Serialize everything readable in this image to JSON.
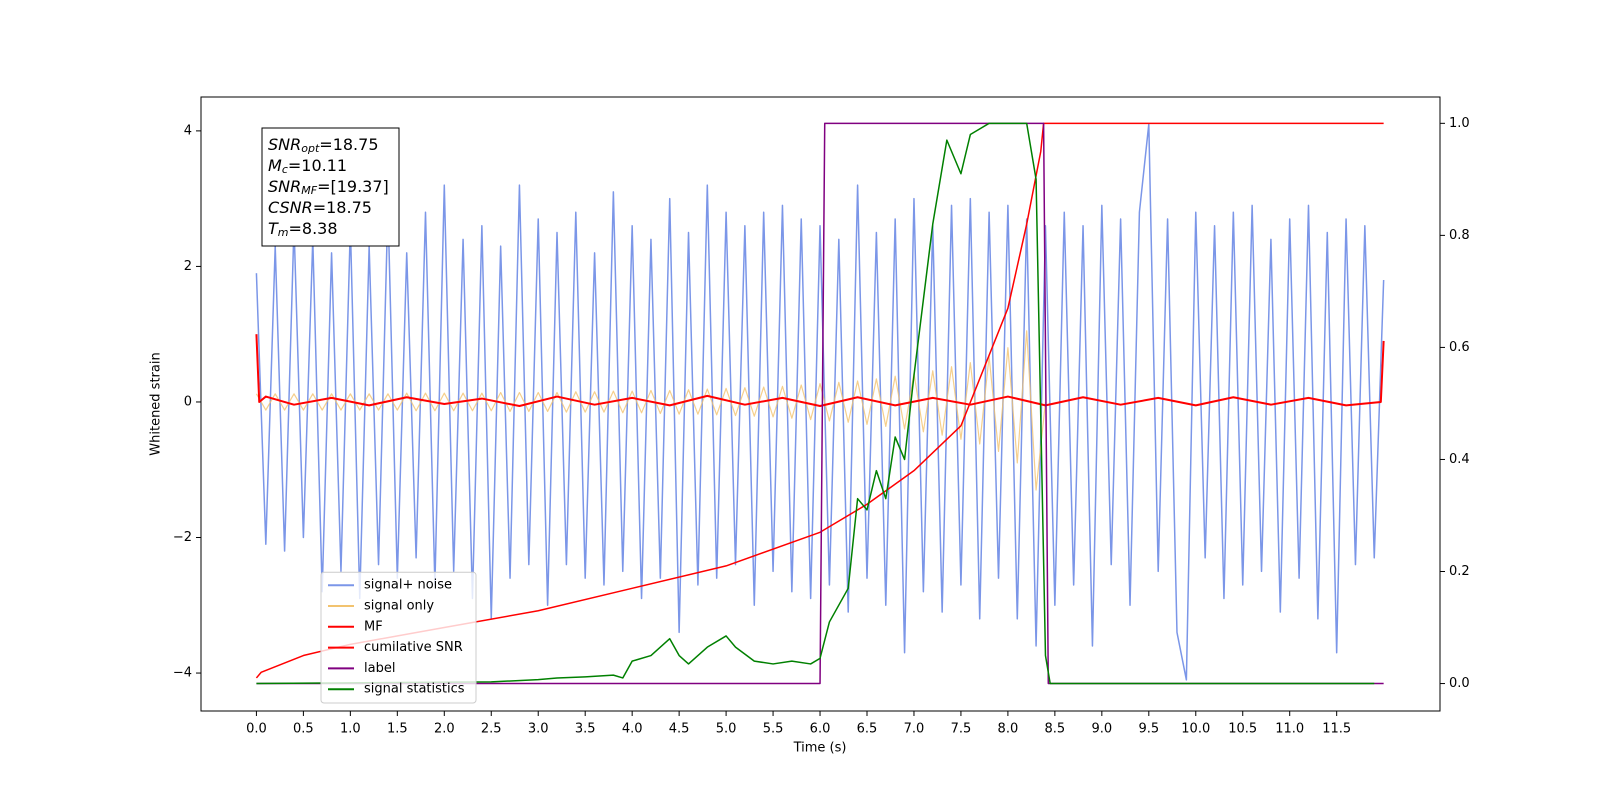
{
  "chart_data": {
    "type": "line",
    "xlabel": "Time (s)",
    "ylabel": "Whitened strain",
    "xlim": [
      -0.59,
      12.6
    ],
    "ylim": [
      -4.56,
      4.5
    ],
    "y2lim": [
      -0.049,
      1.047
    ],
    "xticks": [
      {
        "value": 0,
        "label": "0.0"
      },
      0.5,
      {
        "value": 1,
        "label": "1.0"
      },
      1.5,
      {
        "value": 2,
        "label": "2.0"
      },
      2.5,
      {
        "value": 3,
        "label": "3.0"
      },
      3.5,
      {
        "value": 4,
        "label": "4.0"
      },
      4.5,
      {
        "value": 5,
        "label": "5.0"
      },
      5.5,
      {
        "value": 6,
        "label": "6.0"
      },
      6.5,
      {
        "value": 7,
        "label": "7.0"
      },
      7.5,
      {
        "value": 8,
        "label": "8.0"
      },
      8.5,
      {
        "value": 9,
        "label": "9.0"
      },
      9.5,
      {
        "value": 10,
        "label": "10.0"
      },
      10.5,
      {
        "value": 11,
        "label": "11.0"
      },
      11.5
    ],
    "yticks": [
      {
        "value": -4,
        "label": "−4"
      },
      {
        "value": -2,
        "label": "−2"
      },
      0,
      2,
      4
    ],
    "y2ticks": [
      {
        "value": 0,
        "label": "0.0"
      },
      0.2,
      0.4,
      0.6,
      0.8,
      {
        "value": 1,
        "label": "1.0"
      }
    ],
    "legend": "lower left",
    "annotation": [
      {
        "main": "SNR",
        "sub": "opt",
        "rest": "=18.75"
      },
      {
        "main": "M",
        "sub": "c",
        "rest": "=10.11"
      },
      {
        "main": "SNR",
        "sub": "MF",
        "rest": "=[19.37]"
      },
      {
        "main": "CSNR",
        "rest": "=18.75"
      },
      {
        "main": "T",
        "sub": "m",
        "rest": "=8.38"
      }
    ],
    "series": [
      {
        "name": "signal+ noise",
        "color": "#7b96e8",
        "x": [
          0,
          0.1,
          0.2,
          0.3,
          0.4,
          0.5,
          0.6,
          0.7,
          0.8,
          0.9,
          1,
          1.1,
          1.2,
          1.3,
          1.4,
          1.5,
          1.6,
          1.7,
          1.8,
          1.9,
          2,
          2.1,
          2.2,
          2.3,
          2.4,
          2.5,
          2.6,
          2.7,
          2.8,
          2.9,
          3,
          3.1,
          3.2,
          3.3,
          3.4,
          3.5,
          3.6,
          3.7,
          3.8,
          3.9,
          4,
          4.1,
          4.2,
          4.3,
          4.4,
          4.5,
          4.6,
          4.7,
          4.8,
          4.9,
          5,
          5.1,
          5.2,
          5.3,
          5.4,
          5.5,
          5.6,
          5.7,
          5.8,
          5.9,
          6,
          6.1,
          6.2,
          6.3,
          6.4,
          6.5,
          6.6,
          6.7,
          6.8,
          6.9,
          7,
          7.1,
          7.2,
          7.3,
          7.4,
          7.5,
          7.6,
          7.7,
          7.8,
          7.9,
          8,
          8.1,
          8.2,
          8.3,
          8.4,
          8.5,
          8.6,
          8.7,
          8.8,
          8.9,
          9,
          9.1,
          9.2,
          9.3,
          9.4,
          9.5,
          9.6,
          9.7,
          9.8,
          9.9,
          10,
          10.1,
          10.2,
          10.3,
          10.4,
          10.5,
          10.6,
          10.7,
          10.8,
          10.9,
          11,
          11.1,
          11.2,
          11.3,
          11.4,
          11.5,
          11.6,
          11.7,
          11.8,
          11.9,
          12
        ],
        "values": [
          1.9,
          -2.1,
          2.3,
          -2.2,
          2.6,
          -2.0,
          2.4,
          -2.8,
          2.2,
          -2.5,
          2.6,
          -2.9,
          2.3,
          -2.4,
          2.9,
          -2.6,
          2.2,
          -2.3,
          2.8,
          -2.7,
          3.2,
          -2.5,
          2.4,
          -2.9,
          2.6,
          -3.2,
          2.3,
          -2.6,
          3.2,
          -2.4,
          2.7,
          -3.0,
          2.5,
          -2.4,
          2.8,
          -2.6,
          2.2,
          -2.7,
          3.1,
          -2.5,
          2.6,
          -2.9,
          2.4,
          -2.6,
          3.0,
          -3.4,
          2.5,
          -2.7,
          3.2,
          -2.6,
          2.8,
          -2.4,
          2.6,
          -3.0,
          2.8,
          -2.5,
          2.9,
          -2.8,
          2.7,
          -2.9,
          2.6,
          -2.7,
          2.4,
          -3.1,
          3.2,
          -2.6,
          2.5,
          -3.0,
          2.7,
          -3.7,
          3.0,
          -2.8,
          2.6,
          -3.1,
          2.9,
          -2.7,
          3.0,
          -3.2,
          2.8,
          -2.6,
          2.9,
          -3.2,
          2.7,
          -3.6,
          2.6,
          -3.0,
          2.8,
          -2.7,
          2.6,
          -3.6,
          2.9,
          -2.4,
          2.7,
          -3.0,
          2.8,
          4.1,
          -2.5,
          2.7,
          -3.4,
          -4.1,
          2.8,
          -2.3,
          2.6,
          -2.9,
          2.8,
          -2.7,
          2.9,
          -2.5,
          2.4,
          -3.1,
          2.7,
          -2.6,
          2.9,
          -3.2,
          2.5,
          -3.7,
          2.7,
          -2.4,
          2.6,
          -2.3,
          1.8
        ]
      },
      {
        "name": "signal only",
        "color": "#f2c36f",
        "x": [
          0,
          0.1,
          0.2,
          0.3,
          0.4,
          0.5,
          0.6,
          0.7,
          0.8,
          0.9,
          1,
          1.1,
          1.2,
          1.3,
          1.4,
          1.5,
          1.6,
          1.7,
          1.8,
          1.9,
          2,
          2.1,
          2.2,
          2.3,
          2.4,
          2.5,
          2.6,
          2.7,
          2.8,
          2.9,
          3,
          3.1,
          3.2,
          3.3,
          3.4,
          3.5,
          3.6,
          3.7,
          3.8,
          3.9,
          4,
          4.1,
          4.2,
          4.3,
          4.4,
          4.5,
          4.6,
          4.7,
          4.8,
          4.9,
          5,
          5.1,
          5.2,
          5.3,
          5.4,
          5.5,
          5.6,
          5.7,
          5.8,
          5.9,
          6,
          6.1,
          6.2,
          6.3,
          6.4,
          6.5,
          6.6,
          6.7,
          6.8,
          6.9,
          7,
          7.1,
          7.2,
          7.3,
          7.4,
          7.5,
          7.6,
          7.7,
          7.8,
          7.9,
          8,
          8.1,
          8.2,
          8.3,
          8.4
        ],
        "values": [
          0.12,
          -0.12,
          0.12,
          -0.12,
          0.12,
          -0.12,
          0.12,
          -0.12,
          0.12,
          -0.12,
          0.12,
          -0.12,
          0.12,
          -0.12,
          0.12,
          -0.12,
          0.13,
          -0.13,
          0.13,
          -0.13,
          0.13,
          -0.13,
          0.13,
          -0.13,
          0.13,
          -0.13,
          0.14,
          -0.14,
          0.14,
          -0.14,
          0.14,
          -0.14,
          0.14,
          -0.15,
          0.15,
          -0.15,
          0.15,
          -0.15,
          0.16,
          -0.16,
          0.16,
          -0.16,
          0.17,
          -0.17,
          0.17,
          -0.18,
          0.18,
          -0.18,
          0.19,
          -0.19,
          0.2,
          -0.2,
          0.21,
          -0.21,
          0.22,
          -0.22,
          0.23,
          -0.24,
          0.25,
          -0.26,
          0.27,
          -0.28,
          0.29,
          -0.3,
          0.31,
          -0.33,
          0.34,
          -0.36,
          0.38,
          -0.4,
          0.42,
          -0.44,
          0.46,
          -0.49,
          0.52,
          -0.55,
          0.58,
          -0.62,
          0.67,
          -0.73,
          0.8,
          -0.9,
          1.05,
          -1.3,
          0
        ]
      },
      {
        "name": "MF",
        "color": "#ff0000",
        "x": [
          0,
          0.03,
          0.1,
          0.4,
          0.8,
          1.2,
          1.6,
          2.0,
          2.4,
          2.8,
          3.2,
          3.6,
          4.0,
          4.4,
          4.8,
          5.2,
          5.6,
          6.0,
          6.4,
          6.8,
          7.2,
          7.6,
          8.0,
          8.4,
          8.8,
          9.2,
          9.6,
          10.0,
          10.4,
          10.8,
          11.2,
          11.6,
          11.97,
          12.0
        ],
        "values": [
          1.0,
          0.0,
          0.08,
          -0.04,
          0.06,
          -0.05,
          0.07,
          -0.03,
          0.05,
          -0.06,
          0.08,
          -0.04,
          0.06,
          -0.05,
          0.09,
          -0.04,
          0.06,
          -0.06,
          0.07,
          -0.05,
          0.06,
          -0.04,
          0.08,
          -0.05,
          0.07,
          -0.04,
          0.06,
          -0.05,
          0.07,
          -0.04,
          0.06,
          -0.05,
          0.0,
          0.9
        ]
      },
      {
        "name": "cumilative SNR",
        "color": "#ff0000",
        "axis": "y2",
        "x": [
          0,
          0.05,
          0.5,
          1,
          2,
          3,
          4,
          5,
          6,
          6.5,
          7,
          7.5,
          8,
          8.2,
          8.35,
          8.38,
          9,
          10,
          11,
          12
        ],
        "values": [
          0.01,
          0.02,
          0.05,
          0.07,
          0.1,
          0.13,
          0.17,
          0.21,
          0.27,
          0.32,
          0.38,
          0.46,
          0.67,
          0.82,
          0.95,
          1.0,
          1.0,
          1.0,
          1.0,
          1.0
        ]
      },
      {
        "name": "label",
        "color": "#800080",
        "axis": "y2",
        "x": [
          0,
          6.0,
          6.05,
          8.38,
          8.43,
          12
        ],
        "values": [
          0,
          0,
          1,
          1,
          0,
          0
        ]
      },
      {
        "name": "signal statistics",
        "color": "#008000",
        "axis": "y2",
        "x": [
          0,
          2.5,
          3.0,
          3.2,
          3.5,
          3.8,
          3.9,
          4.0,
          4.2,
          4.4,
          4.5,
          4.6,
          4.8,
          5.0,
          5.1,
          5.3,
          5.5,
          5.7,
          5.9,
          6.0,
          6.1,
          6.3,
          6.4,
          6.5,
          6.6,
          6.7,
          6.8,
          6.9,
          7.0,
          7.2,
          7.35,
          7.5,
          7.6,
          7.8,
          8.2,
          8.3,
          8.4,
          8.45,
          11.9
        ],
        "values": [
          0,
          0.003,
          0.007,
          0.01,
          0.012,
          0.015,
          0.01,
          0.04,
          0.05,
          0.08,
          0.05,
          0.035,
          0.065,
          0.085,
          0.065,
          0.04,
          0.035,
          0.04,
          0.035,
          0.045,
          0.11,
          0.17,
          0.33,
          0.31,
          0.38,
          0.33,
          0.44,
          0.4,
          0.55,
          0.82,
          0.97,
          0.91,
          0.98,
          1.0,
          1.0,
          0.9,
          0.05,
          0.0,
          0.0
        ]
      }
    ]
  }
}
